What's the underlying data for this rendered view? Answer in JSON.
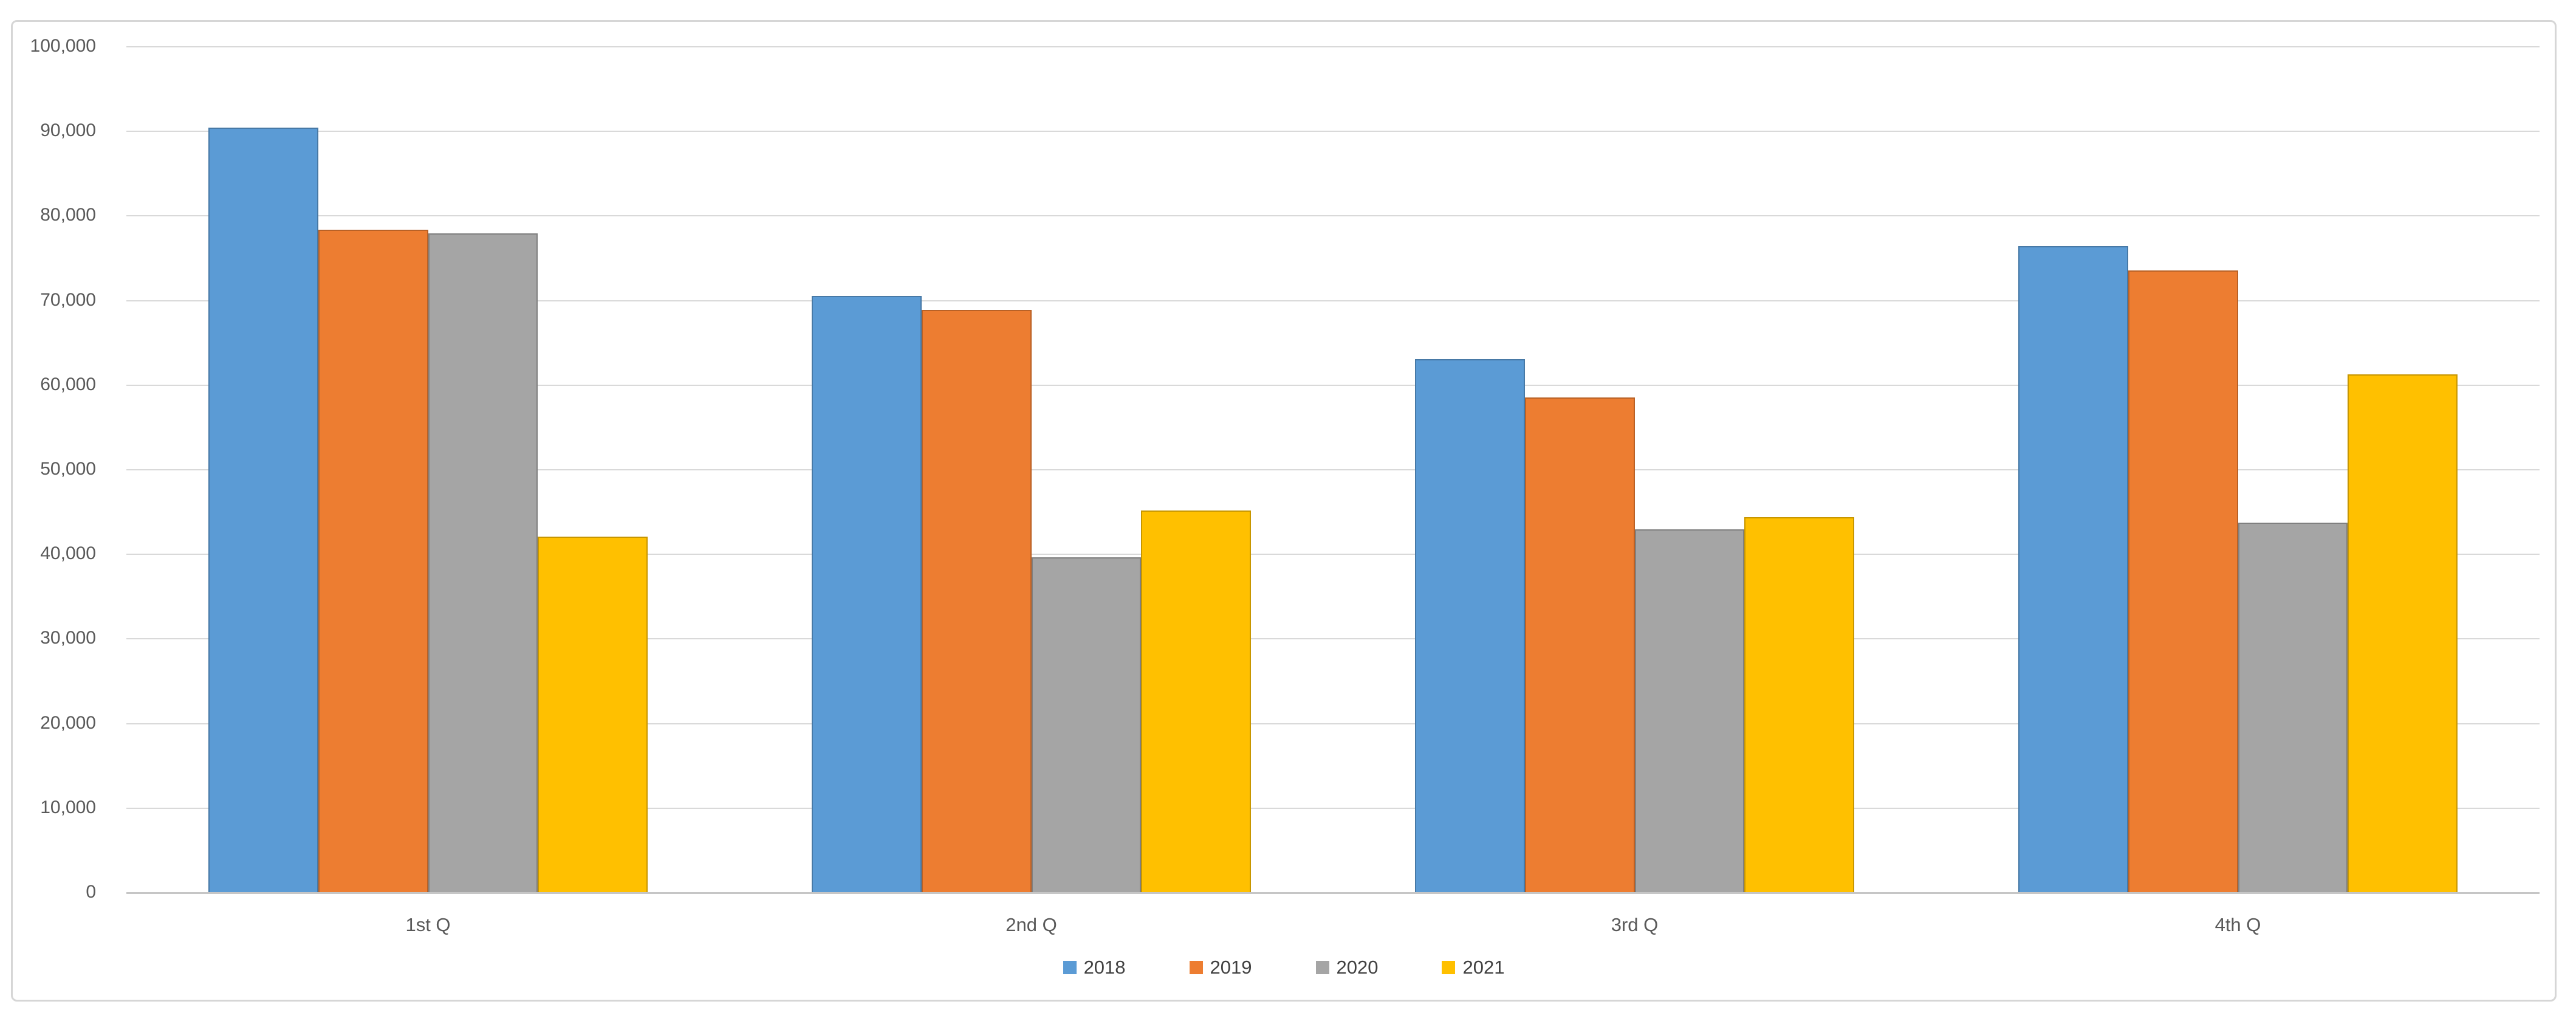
{
  "chart_data": {
    "type": "bar",
    "title": "",
    "categories": [
      "1st Q",
      "2nd Q",
      "3rd Q",
      "4th Q"
    ],
    "series": [
      {
        "name": "2018",
        "color": "#5B9BD5",
        "values": [
          90400,
          70500,
          63000,
          76400
        ]
      },
      {
        "name": "2019",
        "color": "#ED7D31",
        "values": [
          78300,
          68800,
          58500,
          73500
        ]
      },
      {
        "name": "2020",
        "color": "#A5A5A5",
        "values": [
          77900,
          39600,
          42900,
          43700
        ]
      },
      {
        "name": "2021",
        "color": "#FFC000",
        "values": [
          42000,
          45100,
          44300,
          61200
        ]
      }
    ],
    "ylim": [
      0,
      100000
    ],
    "ytick_step": 10000,
    "ytick_labels": [
      "0",
      "10,000",
      "20,000",
      "30,000",
      "40,000",
      "50,000",
      "60,000",
      "70,000",
      "80,000",
      "90,000",
      "100,000"
    ],
    "grid": true,
    "legend_position": "bottom"
  },
  "colors": {
    "background": "#ffffff",
    "frame_border": "#d6d6d6",
    "gridline": "#d9d9d9",
    "axis_text": "#595959"
  }
}
